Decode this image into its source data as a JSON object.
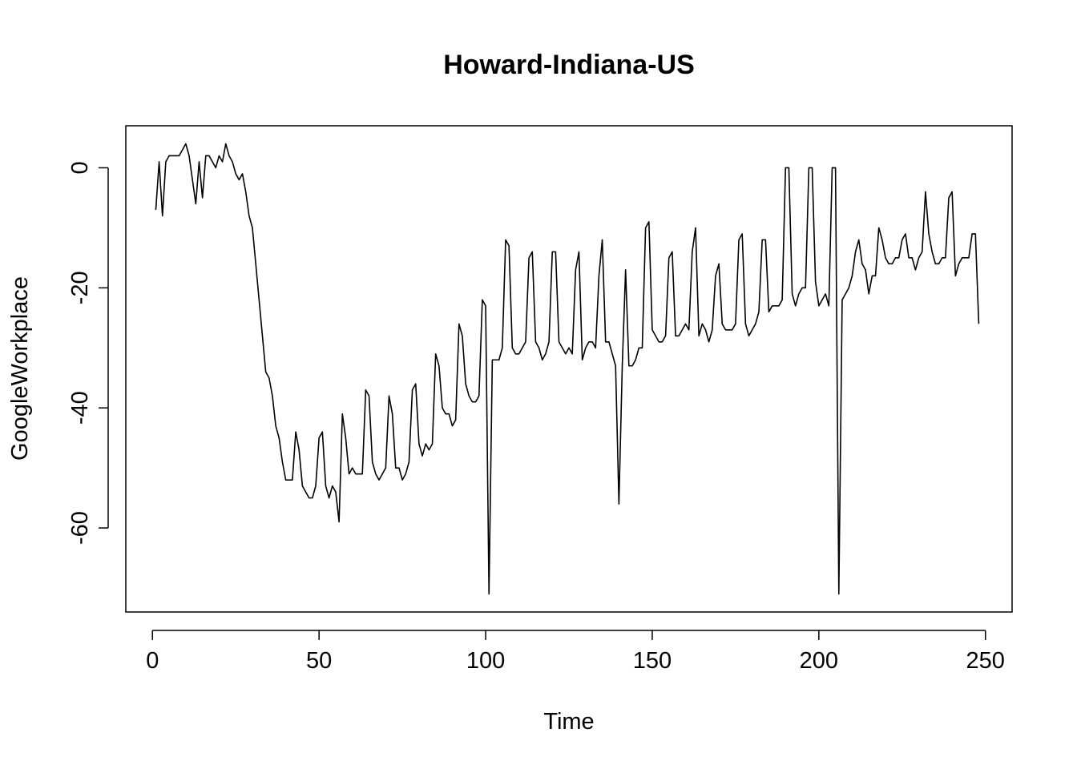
{
  "chart_data": {
    "type": "line",
    "title": "Howard-Indiana-US",
    "xlabel": "Time",
    "ylabel": "GoogleWorkplace",
    "xlim": [
      -8,
      258
    ],
    "ylim": [
      -74,
      7
    ],
    "xticks": [
      0,
      50,
      100,
      150,
      200,
      250
    ],
    "yticks": [
      0,
      -20,
      -40,
      -60
    ],
    "grid": false,
    "legend": "none",
    "line_color": "#000000",
    "x_start": 1,
    "values": [
      -7,
      1,
      -8,
      1,
      2,
      2,
      2,
      2,
      3,
      4,
      2,
      -2,
      -6,
      1,
      -5,
      2,
      2,
      1,
      0,
      2,
      1,
      4,
      2,
      1,
      -1,
      -2,
      -1,
      -4,
      -8,
      -10,
      -16,
      -22,
      -28,
      -34,
      -35,
      -38,
      -43,
      -45,
      -49,
      -52,
      -52,
      -52,
      -44,
      -47,
      -53,
      -54,
      -55,
      -55,
      -53,
      -45,
      -44,
      -53,
      -55,
      -53,
      -54,
      -59,
      -41,
      -45,
      -51,
      -50,
      -51,
      -51,
      -51,
      -37,
      -38,
      -49,
      -51,
      -52,
      -51,
      -50,
      -38,
      -41,
      -50,
      -50,
      -52,
      -51,
      -49,
      -37,
      -36,
      -46,
      -48,
      -46,
      -47,
      -46,
      -31,
      -33,
      -40,
      -41,
      -41,
      -43,
      -42,
      -26,
      -28,
      -36,
      -38,
      -39,
      -39,
      -38,
      -22,
      -23,
      -71,
      -32,
      -32,
      -32,
      -30,
      -12,
      -13,
      -30,
      -31,
      -31,
      -30,
      -29,
      -15,
      -14,
      -29,
      -30,
      -32,
      -31,
      -29,
      -14,
      -14,
      -29,
      -30,
      -31,
      -30,
      -31,
      -17,
      -14,
      -32,
      -30,
      -29,
      -29,
      -30,
      -18,
      -12,
      -29,
      -29,
      -31,
      -33,
      -56,
      -33,
      -17,
      -33,
      -33,
      -32,
      -30,
      -30,
      -10,
      -9,
      -27,
      -28,
      -29,
      -29,
      -28,
      -15,
      -14,
      -28,
      -28,
      -27,
      -26,
      -27,
      -14,
      -10,
      -28,
      -26,
      -27,
      -29,
      -27,
      -18,
      -16,
      -26,
      -27,
      -27,
      -27,
      -26,
      -12,
      -11,
      -26,
      -28,
      -27,
      -26,
      -24,
      -12,
      -12,
      -24,
      -23,
      -23,
      -23,
      -22,
      0,
      0,
      -21,
      -23,
      -21,
      -20,
      -20,
      0,
      0,
      -19,
      -23,
      -22,
      -21,
      -23,
      0,
      0,
      -71,
      -22,
      -21,
      -20,
      -18,
      -14,
      -12,
      -16,
      -17,
      -21,
      -18,
      -18,
      -10,
      -12,
      -15,
      -16,
      -16,
      -15,
      -15,
      -12,
      -11,
      -15,
      -15,
      -17,
      -15,
      -14,
      -4,
      -11,
      -14,
      -16,
      -16,
      -15,
      -15,
      -5,
      -4,
      -18,
      -16,
      -15,
      -15,
      -15,
      -11,
      -11,
      -26
    ]
  }
}
